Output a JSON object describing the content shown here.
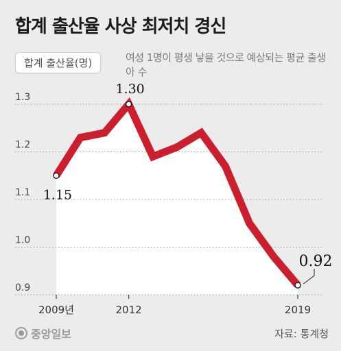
{
  "title": "합계 출산율 사상 최저치 경신",
  "unit_label": "합계 출산율(명)",
  "unit_note": "여성 1명이 평생 낳을 것으로 예상되는 평균 출생아 수",
  "source": "자료: 통계청",
  "logo_text": "중앙일보",
  "colors": {
    "line": "#cc1f2e",
    "fill": "#ffffff",
    "background": "#ececec"
  },
  "chart_data": {
    "type": "line",
    "title": "합계 출산율 사상 최저치 경신",
    "ylabel": "합계 출산율(명)",
    "xlabel": "",
    "x": [
      2009,
      2010,
      2011,
      2012,
      2013,
      2014,
      2015,
      2016,
      2017,
      2018,
      2019
    ],
    "values": [
      1.15,
      1.23,
      1.24,
      1.3,
      1.19,
      1.21,
      1.24,
      1.17,
      1.05,
      0.98,
      0.92
    ],
    "ylim": [
      0.9,
      1.3
    ],
    "yticks": [
      "0.9",
      "1.0",
      "1.1",
      "1.2",
      "1.3"
    ],
    "xtick_labels": [
      {
        "x": 2009,
        "label": "2009년"
      },
      {
        "x": 2012,
        "label": "2012"
      },
      {
        "x": 2019,
        "label": "2019"
      }
    ],
    "data_labels": [
      {
        "x": 2009,
        "label": "1.15"
      },
      {
        "x": 2012,
        "label": "1.30"
      },
      {
        "x": 2019,
        "label": "0.92"
      }
    ],
    "grid": true
  }
}
